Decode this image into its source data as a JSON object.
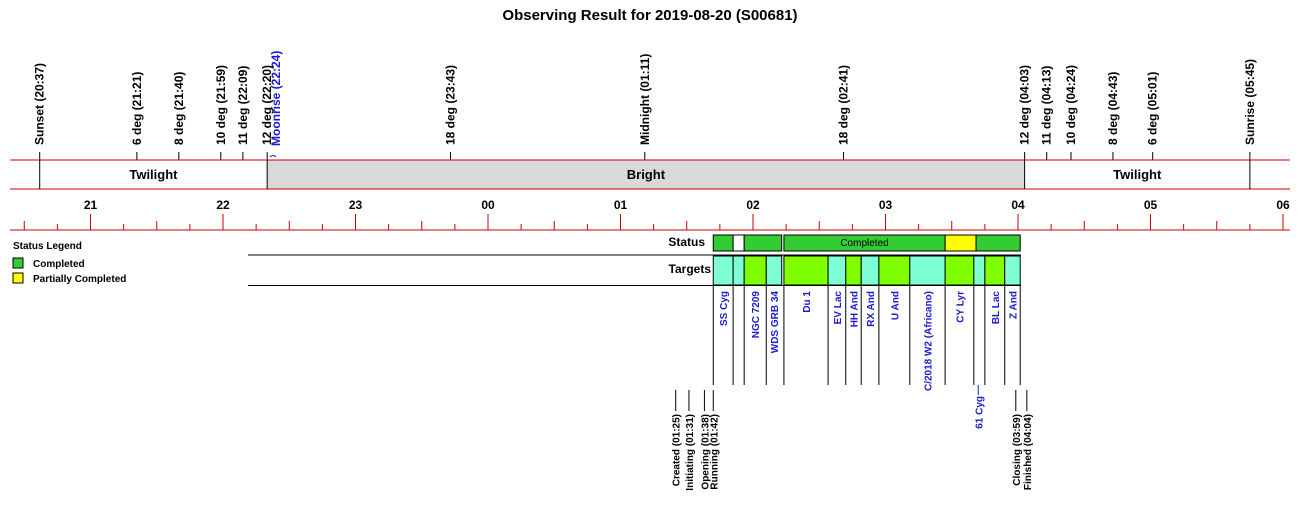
{
  "chart_data": {
    "type": "timeline",
    "title": "Observing Result for 2019-08-20 (S00681)",
    "hour_ticks": [
      {
        "hour": 21,
        "label": "21"
      },
      {
        "hour": 22,
        "label": "22"
      },
      {
        "hour": 23,
        "label": "23"
      },
      {
        "hour": 24,
        "label": "00"
      },
      {
        "hour": 25,
        "label": "01"
      },
      {
        "hour": 26,
        "label": "02"
      },
      {
        "hour": 27,
        "label": "03"
      },
      {
        "hour": 28,
        "label": "04"
      },
      {
        "hour": 29,
        "label": "05"
      },
      {
        "hour": 30,
        "label": "06"
      }
    ],
    "time_range": [
      20.35,
      30.0
    ],
    "sky_events": [
      {
        "label": "Sunset (20:37)",
        "time": "20:37",
        "style": "black"
      },
      {
        "label": "6 deg (21:21)",
        "time": "21:21",
        "style": "black"
      },
      {
        "label": "8 deg (21:40)",
        "time": "21:40",
        "style": "black"
      },
      {
        "label": "10 deg (21:59)",
        "time": "21:59",
        "style": "black"
      },
      {
        "label": "11 deg (22:09)",
        "time": "22:09",
        "style": "black"
      },
      {
        "label": "12 deg (22:20)",
        "time": "22:20",
        "style": "black"
      },
      {
        "label": "Moonrise (22:24)",
        "time": "22:24",
        "style": "blue"
      },
      {
        "label": "18 deg (23:43)",
        "time": "23:43",
        "style": "black"
      },
      {
        "label": "Midnight (01:11)",
        "time": "01:11",
        "style": "black"
      },
      {
        "label": "18 deg (02:41)",
        "time": "02:41",
        "style": "black"
      },
      {
        "label": "12 deg (04:03)",
        "time": "04:03",
        "style": "black"
      },
      {
        "label": "11 deg (04:13)",
        "time": "04:13",
        "style": "black"
      },
      {
        "label": "10 deg (04:24)",
        "time": "04:24",
        "style": "black"
      },
      {
        "label": "8 deg (04:43)",
        "time": "04:43",
        "style": "black"
      },
      {
        "label": "6 deg (05:01)",
        "time": "05:01",
        "style": "black"
      },
      {
        "label": "Sunrise (05:45)",
        "time": "05:45",
        "style": "black"
      }
    ],
    "sky_bands": [
      {
        "label": "Twilight",
        "start": "20:37",
        "end": "22:20",
        "color": "#ffffff"
      },
      {
        "label": "Bright",
        "start": "22:20",
        "end": "04:03",
        "color": "#d9d9d9"
      },
      {
        "label": "Twilight",
        "start": "04:03",
        "end": "05:45",
        "color": "#ffffff"
      }
    ],
    "rows": {
      "status": "Status",
      "targets": "Targets"
    },
    "status_segments": [
      {
        "start": "01:42",
        "end": "01:51",
        "state": "Completed",
        "label": ""
      },
      {
        "start": "01:51",
        "end": "01:56",
        "state": "Blank",
        "label": ""
      },
      {
        "start": "01:56",
        "end": "02:13",
        "state": "Completed",
        "label": ""
      },
      {
        "start": "02:14",
        "end": "03:27",
        "state": "Completed",
        "label": "Completed"
      },
      {
        "start": "03:27",
        "end": "03:41",
        "state": "Partially Completed",
        "label": ""
      },
      {
        "start": "03:41",
        "end": "04:01",
        "state": "Completed",
        "label": ""
      }
    ],
    "target_segments": [
      {
        "name": "SS Cyg",
        "start": "01:42",
        "end": "01:51",
        "color": "#7fffd4"
      },
      {
        "name": "",
        "start": "01:51",
        "end": "01:56",
        "color": "#7fffd4"
      },
      {
        "name": "NGC 7209",
        "start": "01:56",
        "end": "02:06",
        "color": "#7fff00"
      },
      {
        "name": "WDS GRB 34",
        "start": "02:06",
        "end": "02:13",
        "color": "#7fffd4"
      },
      {
        "name": "Du 1",
        "start": "02:14",
        "end": "02:34",
        "color": "#7fff00"
      },
      {
        "name": "EV Lac",
        "start": "02:34",
        "end": "02:42",
        "color": "#7fffd4"
      },
      {
        "name": "HH And",
        "start": "02:42",
        "end": "02:49",
        "color": "#7fff00"
      },
      {
        "name": "RX And",
        "start": "02:49",
        "end": "02:57",
        "color": "#7fffd4"
      },
      {
        "name": "U And",
        "start": "02:57",
        "end": "03:11",
        "color": "#7fff00"
      },
      {
        "name": "C/2018 W2 (Africano)",
        "start": "03:11",
        "end": "03:27",
        "color": "#7fffd4"
      },
      {
        "name": "CY Lyr",
        "start": "03:27",
        "end": "03:40",
        "color": "#7fff00"
      },
      {
        "name": "",
        "start": "03:40",
        "end": "03:45",
        "color": "#7fffd4"
      },
      {
        "name": "BL Lac",
        "start": "03:45",
        "end": "03:54",
        "color": "#7fff00"
      },
      {
        "name": "Z And",
        "start": "03:54",
        "end": "04:01",
        "color": "#7fffd4"
      }
    ],
    "extra_target_labels": [
      {
        "name": "61 Cyg",
        "time": "03:42"
      }
    ],
    "run_events": [
      {
        "label": "Created (01:25)",
        "time": "01:25"
      },
      {
        "label": "Initiating (01:31)",
        "time": "01:31"
      },
      {
        "label": "Opening (01:38)",
        "time": "01:38"
      },
      {
        "label": "Running (01:42)",
        "time": "01:42"
      },
      {
        "label": "Closing (03:59)",
        "time": "03:59"
      },
      {
        "label": "Finished (04:04)",
        "time": "04:04"
      }
    ],
    "legend": {
      "title": "Status Legend",
      "items": [
        {
          "label": "Completed",
          "color": "#33cc33"
        },
        {
          "label": "Partially Completed",
          "color": "#ffff00"
        }
      ]
    },
    "colors": {
      "axis_red": "#cc0000",
      "completed": "#33cc33",
      "partial": "#ffff00",
      "bright": "#d9d9d9",
      "target_a": "#7fffd4",
      "target_b": "#7fff00",
      "link_blue": "#1a1ad0"
    }
  }
}
